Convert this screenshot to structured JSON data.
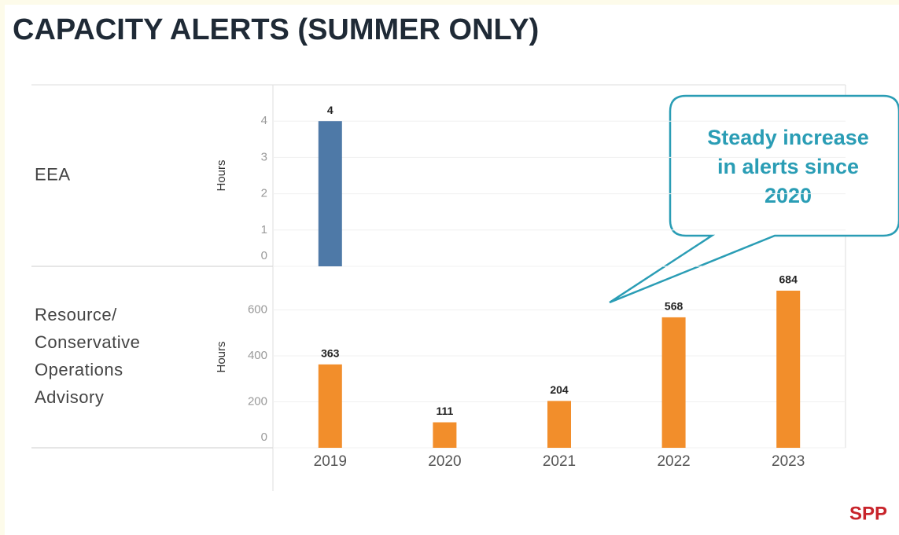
{
  "title": "CAPACITY ALERTS (SUMMER ONLY)",
  "chart_data": [
    {
      "type": "bar",
      "panel_label": [
        "EEA"
      ],
      "y_label": "Hours",
      "values": [
        4,
        null,
        null,
        null,
        null
      ],
      "color": "#4e79a7",
      "ylim": [
        0,
        5
      ],
      "yticks": [
        0,
        1,
        2,
        3,
        4
      ],
      "grid": true
    },
    {
      "type": "bar",
      "panel_label": [
        "Resource/",
        "Conservative",
        "Operations",
        "Advisory"
      ],
      "y_label": "Hours",
      "categories": [
        "2019",
        "2020",
        "2021",
        "2022",
        "2023"
      ],
      "values": [
        363,
        111,
        204,
        568,
        684
      ],
      "color": "#f28e2b",
      "ylim": [
        0,
        790
      ],
      "yticks": [
        0,
        200,
        400,
        600
      ],
      "grid": true
    }
  ],
  "annotation": [
    "Steady increase",
    "in alerts since",
    "2020"
  ],
  "logo": "SPP"
}
